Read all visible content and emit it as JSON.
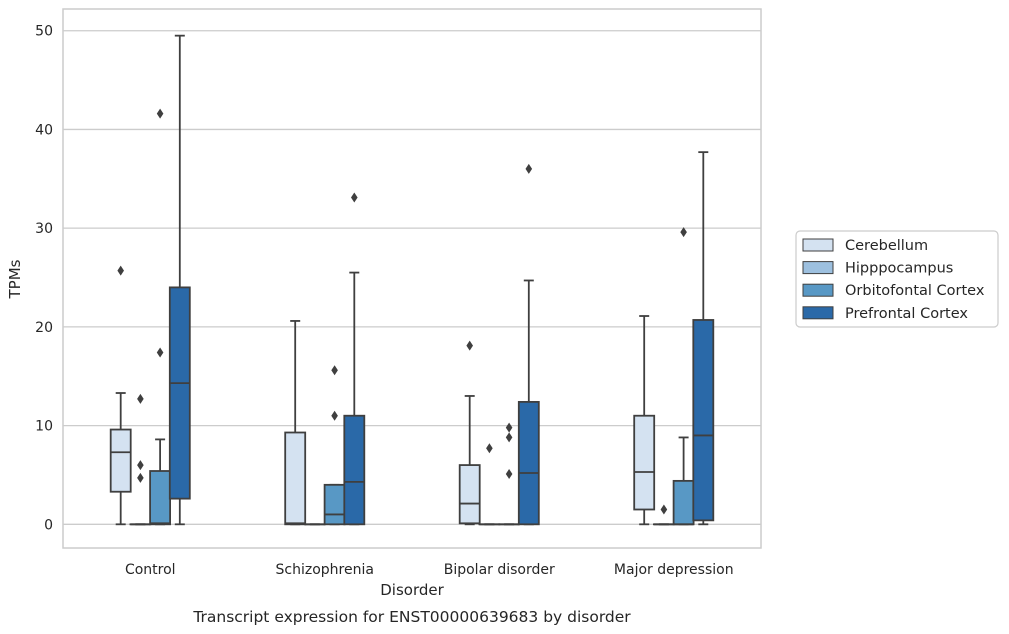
{
  "chart_data": {
    "type": "box",
    "title": "",
    "caption": "Transcript expression for ENST00000639683 by disorder",
    "xlabel": "Disorder",
    "ylabel": "TPMs",
    "ylim": [
      -2.4,
      52.2
    ],
    "yticks": [
      0,
      10,
      20,
      30,
      40,
      50
    ],
    "grid": "horizontal",
    "legend_placement": "right, outside plot",
    "categories": [
      "Control",
      "Schizophrenia",
      "Bipolar disorder",
      "Major depression"
    ],
    "series": [
      {
        "name": "Cerebellum",
        "color": "#d4e2f1",
        "boxes": [
          {
            "whislo": 0,
            "q1": 3.3,
            "med": 7.3,
            "q3": 9.6,
            "whishi": 13.3,
            "fliers": [
              25.7
            ]
          },
          {
            "whislo": 0,
            "q1": 0,
            "med": 0.1,
            "q3": 9.3,
            "whishi": 20.6,
            "fliers": []
          },
          {
            "whislo": 0,
            "q1": 0.1,
            "med": 2.1,
            "q3": 6.0,
            "whishi": 13.0,
            "fliers": [
              18.1
            ]
          },
          {
            "whislo": 0,
            "q1": 1.5,
            "med": 5.3,
            "q3": 11.0,
            "whishi": 21.1,
            "fliers": []
          }
        ]
      },
      {
        "name": "Hipppocampus",
        "color": "#9dc0df",
        "boxes": [
          {
            "whislo": 0,
            "q1": 0,
            "med": 0,
            "q3": 0,
            "whishi": 0,
            "fliers": [
              4.7,
              6.0,
              12.7
            ]
          },
          {
            "whislo": 0,
            "q1": 0,
            "med": 0,
            "q3": 0,
            "whishi": 0,
            "fliers": []
          },
          {
            "whislo": 0,
            "q1": 0,
            "med": 0,
            "q3": 0,
            "whishi": 0,
            "fliers": [
              7.7
            ]
          },
          {
            "whislo": 0,
            "q1": 0,
            "med": 0,
            "q3": 0,
            "whishi": 0,
            "fliers": [
              1.5
            ]
          }
        ]
      },
      {
        "name": "Orbitofontal Cortex",
        "color": "#5898c5",
        "boxes": [
          {
            "whislo": 0,
            "q1": 0,
            "med": 0.1,
            "q3": 5.4,
            "whishi": 8.6,
            "fliers": [
              17.4,
              41.6
            ]
          },
          {
            "whislo": 0,
            "q1": 0,
            "med": 1.0,
            "q3": 4.0,
            "whishi": 4.0,
            "fliers": [
              11.0,
              15.6
            ]
          },
          {
            "whislo": 0,
            "q1": 0,
            "med": 0,
            "q3": 0,
            "whishi": 0,
            "fliers": [
              5.1,
              8.8,
              9.8
            ]
          },
          {
            "whislo": 0,
            "q1": 0,
            "med": 0,
            "q3": 4.4,
            "whishi": 8.8,
            "fliers": [
              29.6
            ]
          }
        ]
      },
      {
        "name": "Prefrontal Cortex",
        "color": "#2a69a8",
        "boxes": [
          {
            "whislo": 0,
            "q1": 2.6,
            "med": 14.3,
            "q3": 24.0,
            "whishi": 49.5,
            "fliers": []
          },
          {
            "whislo": 0,
            "q1": 0,
            "med": 4.3,
            "q3": 11.0,
            "whishi": 25.5,
            "fliers": [
              33.1
            ]
          },
          {
            "whislo": 0,
            "q1": 0,
            "med": 5.2,
            "q3": 12.4,
            "whishi": 24.7,
            "fliers": [
              36.0
            ]
          },
          {
            "whislo": 0,
            "q1": 0.4,
            "med": 9.0,
            "q3": 20.7,
            "whishi": 37.7,
            "fliers": []
          }
        ]
      }
    ]
  }
}
